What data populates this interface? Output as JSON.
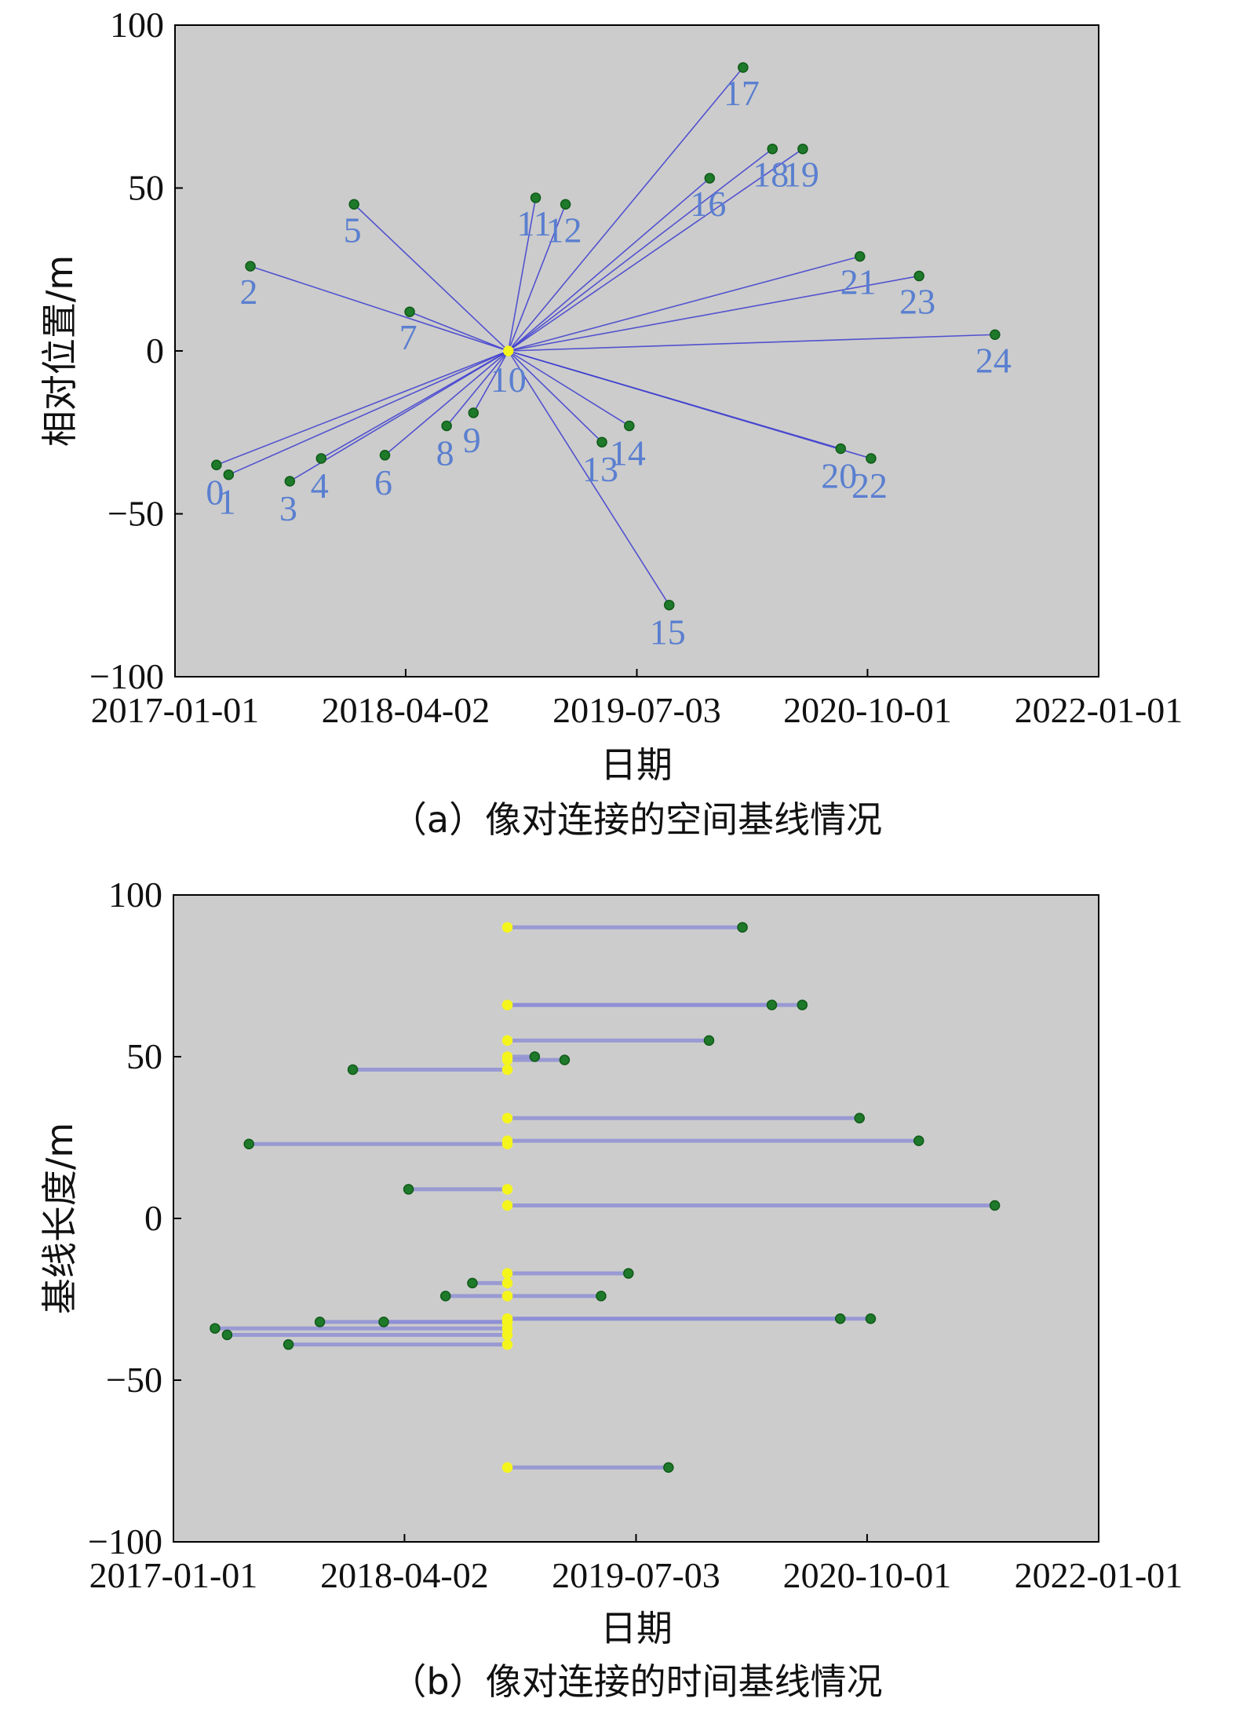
{
  "chart_data": [
    {
      "type": "scatter",
      "caption": "（a）像对连接的空间基线情况",
      "xlabel": "日期",
      "ylabel": "相对位置/m",
      "xlim": [
        "2017-01-01",
        "2022-01-01"
      ],
      "ylim": [
        -100,
        100
      ],
      "xticks": [
        "2017-01-01",
        "2018-04-02",
        "2019-07-03",
        "2020-10-01",
        "2022-01-01"
      ],
      "yticks": [
        100,
        50,
        0,
        -50,
        -100
      ],
      "grid": false,
      "background": "#cccccc",
      "point_color": "#1e7a2a",
      "master_color": "#f5f51e",
      "line_color": "#3c3cd0",
      "label_color": "#5a7fd0",
      "master": {
        "label": "10",
        "date": "2018-10-22",
        "y": 0
      },
      "points": [
        {
          "label": "0",
          "date": "2017-03-24",
          "y": -35
        },
        {
          "label": "1",
          "date": "2017-04-17",
          "y": -38
        },
        {
          "label": "2",
          "date": "2017-05-30",
          "y": 26
        },
        {
          "label": "3",
          "date": "2017-08-16",
          "y": -40
        },
        {
          "label": "4",
          "date": "2017-10-17",
          "y": -33
        },
        {
          "label": "5",
          "date": "2017-12-21",
          "y": 45
        },
        {
          "label": "6",
          "date": "2018-02-20",
          "y": -32
        },
        {
          "label": "7",
          "date": "2018-04-10",
          "y": 12
        },
        {
          "label": "8",
          "date": "2018-06-22",
          "y": -23
        },
        {
          "label": "9",
          "date": "2018-08-14",
          "y": -19
        },
        {
          "label": "11",
          "date": "2018-12-15",
          "y": 47
        },
        {
          "label": "12",
          "date": "2019-02-12",
          "y": 45
        },
        {
          "label": "13",
          "date": "2019-04-25",
          "y": -28
        },
        {
          "label": "14",
          "date": "2019-06-18",
          "y": -23
        },
        {
          "label": "15",
          "date": "2019-09-05",
          "y": -78
        },
        {
          "label": "16",
          "date": "2019-11-24",
          "y": 53
        },
        {
          "label": "17",
          "date": "2020-01-29",
          "y": 87
        },
        {
          "label": "18",
          "date": "2020-03-27",
          "y": 62
        },
        {
          "label": "19",
          "date": "2020-05-26",
          "y": 62
        },
        {
          "label": "20",
          "date": "2020-08-09",
          "y": -30
        },
        {
          "label": "21",
          "date": "2020-09-16",
          "y": 29
        },
        {
          "label": "22",
          "date": "2020-10-08",
          "y": -33
        },
        {
          "label": "23",
          "date": "2021-01-11",
          "y": 23
        },
        {
          "label": "24",
          "date": "2021-06-10",
          "y": 5
        }
      ]
    },
    {
      "type": "scatter",
      "caption": "（b）像对连接的时间基线情况",
      "xlabel": "日期",
      "ylabel": "基线长度/m",
      "xlim": [
        "2017-01-01",
        "2022-01-01"
      ],
      "ylim": [
        -100,
        100
      ],
      "xticks": [
        "2017-01-01",
        "2018-04-02",
        "2019-07-03",
        "2020-10-01",
        "2022-01-01"
      ],
      "yticks": [
        100,
        50,
        0,
        -50,
        -100
      ],
      "grid": false,
      "background": "#cccccc",
      "point_color": "#1e7a2a",
      "master_color": "#f5f51e",
      "line_color": "#8c8cd6",
      "master_date": "2018-10-22",
      "pairs": [
        {
          "date": "2020-01-29",
          "y": 90
        },
        {
          "date": "2020-03-27",
          "y": 66
        },
        {
          "date": "2020-05-26",
          "y": 66
        },
        {
          "date": "2019-11-24",
          "y": 55
        },
        {
          "date": "2018-12-15",
          "y": 50
        },
        {
          "date": "2019-02-12",
          "y": 49
        },
        {
          "date": "2017-12-21",
          "y": 46
        },
        {
          "date": "2020-09-16",
          "y": 31
        },
        {
          "date": "2021-01-11",
          "y": 24
        },
        {
          "date": "2017-05-30",
          "y": 23
        },
        {
          "date": "2018-04-10",
          "y": 9
        },
        {
          "date": "2021-06-10",
          "y": 4
        },
        {
          "date": "2019-06-18",
          "y": -17
        },
        {
          "date": "2018-08-14",
          "y": -20
        },
        {
          "date": "2018-06-22",
          "y": -24
        },
        {
          "date": "2019-04-25",
          "y": -24
        },
        {
          "date": "2017-10-17",
          "y": -32
        },
        {
          "date": "2018-02-20",
          "y": -32
        },
        {
          "date": "2020-08-09",
          "y": -31
        },
        {
          "date": "2020-10-08",
          "y": -31
        },
        {
          "date": "2017-03-24",
          "y": -34
        },
        {
          "date": "2017-04-17",
          "y": -36
        },
        {
          "date": "2017-08-16",
          "y": -39
        },
        {
          "date": "2019-09-05",
          "y": -77
        }
      ]
    }
  ]
}
